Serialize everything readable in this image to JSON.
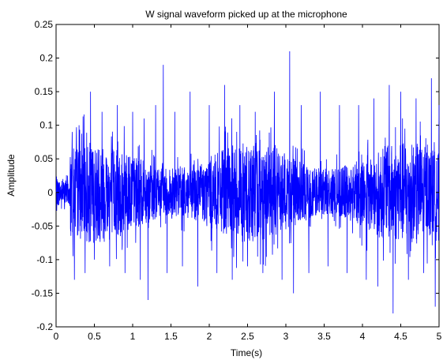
{
  "chart_data": {
    "type": "line",
    "title": "W signal waveform picked up at the microphone",
    "xlabel": "Time(s)",
    "ylabel": "Amplitude",
    "xlim": [
      0,
      5
    ],
    "ylim": [
      -0.2,
      0.25
    ],
    "xticks": [
      "0",
      "0.5",
      "1",
      "1.5",
      "2",
      "2.5",
      "3",
      "3.5",
      "4",
      "4.5",
      "5"
    ],
    "yticks": [
      "-0.2",
      "-0.15",
      "-0.1",
      "-0.05",
      "0",
      "0.05",
      "0.1",
      "0.15",
      "0.2",
      "0.25"
    ],
    "grid": false,
    "series": [
      {
        "color": "#0000ff",
        "description_points": [
          [
            0.0,
            0.0
          ],
          [
            0.03,
            0.015
          ],
          [
            0.06,
            -0.01
          ],
          [
            0.09,
            0.02
          ],
          [
            0.12,
            -0.015
          ],
          [
            0.15,
            0.025
          ],
          [
            0.18,
            -0.02
          ],
          [
            0.21,
            0.09
          ],
          [
            0.24,
            -0.13
          ],
          [
            0.3,
            0.1
          ],
          [
            0.38,
            -0.12
          ],
          [
            0.45,
            0.15
          ],
          [
            0.5,
            -0.1
          ],
          [
            0.6,
            0.12
          ],
          [
            0.7,
            -0.11
          ],
          [
            0.8,
            0.13
          ],
          [
            0.9,
            -0.12
          ],
          [
            1.0,
            0.12
          ],
          [
            1.1,
            -0.13
          ],
          [
            1.15,
            0.11
          ],
          [
            1.2,
            -0.16
          ],
          [
            1.3,
            0.13
          ],
          [
            1.4,
            0.19
          ],
          [
            1.45,
            -0.12
          ],
          [
            1.55,
            0.12
          ],
          [
            1.65,
            -0.11
          ],
          [
            1.75,
            0.15
          ],
          [
            1.85,
            -0.14
          ],
          [
            2.0,
            0.13
          ],
          [
            2.1,
            -0.12
          ],
          [
            2.2,
            0.16
          ],
          [
            2.3,
            -0.13
          ],
          [
            2.4,
            0.13
          ],
          [
            2.5,
            -0.11
          ],
          [
            2.6,
            0.12
          ],
          [
            2.7,
            -0.12
          ],
          [
            2.85,
            0.15
          ],
          [
            2.95,
            -0.13
          ],
          [
            3.05,
            0.21
          ],
          [
            3.1,
            -0.15
          ],
          [
            3.2,
            0.13
          ],
          [
            3.3,
            -0.12
          ],
          [
            3.45,
            0.15
          ],
          [
            3.55,
            -0.11
          ],
          [
            3.7,
            0.13
          ],
          [
            3.8,
            -0.12
          ],
          [
            3.95,
            0.13
          ],
          [
            4.05,
            -0.13
          ],
          [
            4.15,
            0.14
          ],
          [
            4.2,
            -0.14
          ],
          [
            4.35,
            0.16
          ],
          [
            4.4,
            -0.18
          ],
          [
            4.5,
            0.15
          ],
          [
            4.6,
            -0.13
          ],
          [
            4.7,
            0.14
          ],
          [
            4.8,
            -0.12
          ],
          [
            4.9,
            0.17
          ],
          [
            4.95,
            -0.17
          ],
          [
            5.0,
            0.13
          ]
        ]
      }
    ]
  }
}
